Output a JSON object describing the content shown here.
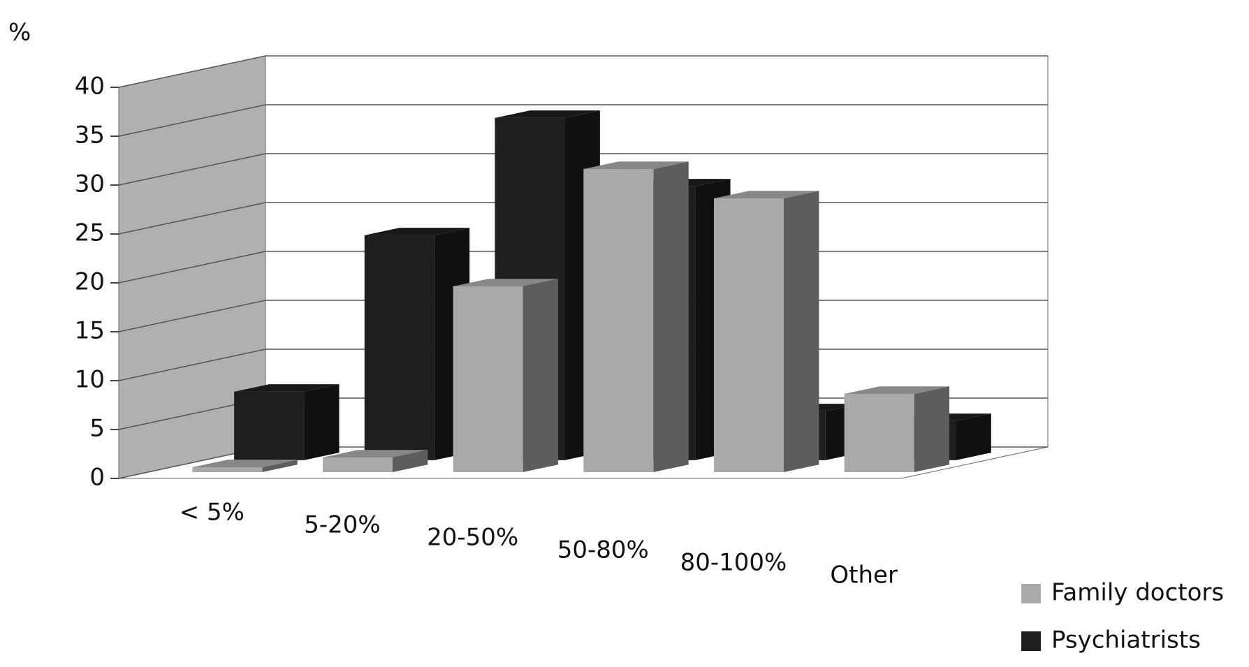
{
  "chart_data": {
    "type": "bar3d",
    "y_label": "%",
    "categories": [
      "< 5%",
      "5-20%",
      "20-50%",
      "50-80%",
      "80-100%",
      "Other"
    ],
    "series": [
      {
        "name": "Psychiatrists",
        "color": "#1e1e1e",
        "values": [
          7,
          23,
          35,
          28,
          5,
          4
        ]
      },
      {
        "name": "Family doctors",
        "color": "#a9a9a9",
        "values": [
          0.5,
          1.5,
          19,
          31,
          28,
          8
        ]
      }
    ],
    "legend_order": [
      "Family doctors",
      "Psychiatrists"
    ],
    "ylim": [
      0,
      40
    ],
    "yticks": [
      0,
      5,
      10,
      15,
      20,
      25,
      30,
      35,
      40
    ],
    "grid": true,
    "legend": "lower right"
  }
}
